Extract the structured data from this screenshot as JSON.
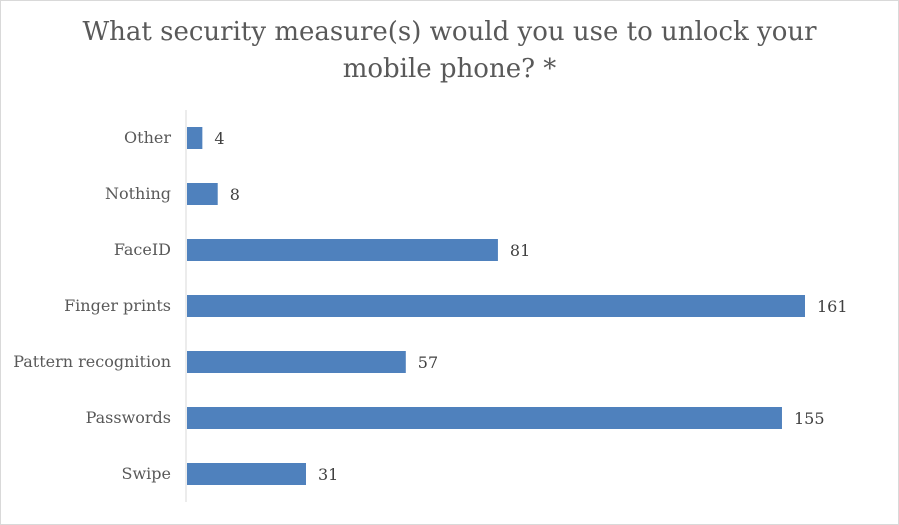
{
  "chart_data": {
    "type": "bar",
    "orientation": "horizontal",
    "title_lines": [
      "What security measure(s) would you use to unlock your",
      "mobile phone? *"
    ],
    "categories": [
      "Other",
      "Nothing",
      "FaceID",
      "Finger prints",
      "Pattern recognition",
      "Passwords",
      "Swipe"
    ],
    "values": [
      4,
      8,
      81,
      161,
      57,
      155,
      31
    ],
    "xlabel": "",
    "ylabel": "",
    "xlim": [
      0,
      161
    ],
    "grid": false,
    "legend": "none",
    "data_labels": true,
    "bar_color": "#4f81bd",
    "axis_color": "#d9d9d9"
  }
}
